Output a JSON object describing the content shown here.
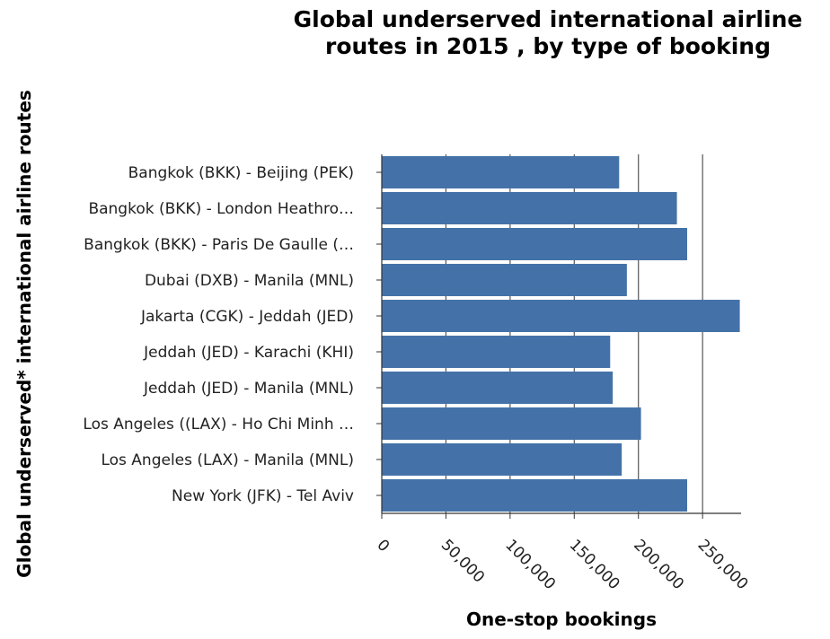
{
  "chart_data": {
    "type": "bar",
    "orientation": "horizontal",
    "title_lines": [
      "Global underserved international airline",
      "routes in 2015 , by type of booking"
    ],
    "xlabel": "One-stop bookings",
    "ylabel": "Global underserved* international airline routes",
    "categories": [
      "Bangkok (BKK) - Beijing (PEK)",
      "Bangkok (BKK) - London Heathro…",
      "Bangkok (BKK) - Paris De Gaulle (…",
      "Dubai (DXB) - Manila (MNL)",
      "Jakarta (CGK) - Jeddah (JED)",
      "Jeddah (JED) - Karachi (KHI)",
      "Jeddah (JED) - Manila (MNL)",
      "Los Angeles ((LAX) - Ho Chi Minh …",
      "Los Angeles (LAX) - Manila (MNL)",
      "New York (JFK) - Tel Aviv"
    ],
    "values": [
      185000,
      230000,
      238000,
      191000,
      279000,
      178000,
      180000,
      202000,
      187000,
      238000
    ],
    "xlim": [
      0,
      280000
    ],
    "xticks": [
      0,
      50000,
      100000,
      150000,
      200000,
      250000
    ],
    "xtick_labels": [
      "0",
      "50,000",
      "100,000",
      "150,000",
      "200,000",
      "250,000"
    ],
    "grid": "vertical",
    "bar_color": "#4472a8"
  }
}
